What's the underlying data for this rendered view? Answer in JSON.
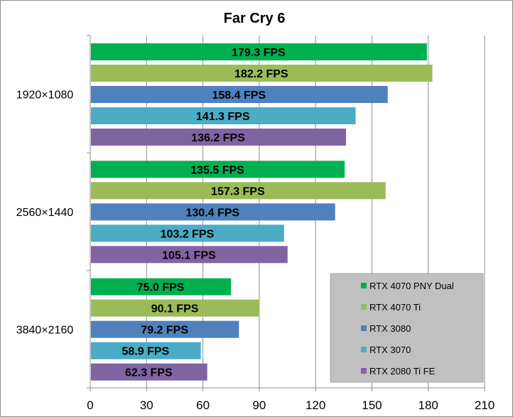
{
  "chart_data": {
    "type": "bar",
    "orientation": "horizontal",
    "title": "Far Cry 6",
    "categories": [
      "1920×1080",
      "2560×1440",
      "3840×2160"
    ],
    "series": [
      {
        "name": "RTX 4070 PNY Dual",
        "color": "#00b050",
        "values": [
          179.3,
          135.5,
          75.0
        ],
        "labels": [
          "179.3 FPS",
          "135.5 FPS",
          "75.0 FPS"
        ]
      },
      {
        "name": "RTX 4070 Ti",
        "color": "#9bbb59",
        "values": [
          182.2,
          157.3,
          90.1
        ],
        "labels": [
          "182.2 FPS",
          "157.3 FPS",
          "90.1 FPS"
        ]
      },
      {
        "name": "RTX 3080",
        "color": "#4f81bd",
        "values": [
          158.4,
          130.4,
          79.2
        ],
        "labels": [
          "158.4 FPS",
          "130.4 FPS",
          "79.2 FPS"
        ]
      },
      {
        "name": "RTX 3070",
        "color": "#4bacc6",
        "values": [
          141.3,
          103.2,
          58.9
        ],
        "labels": [
          "141.3 FPS",
          "103.2 FPS",
          "58.9 FPS"
        ]
      },
      {
        "name": "RTX 2080 Ti FE",
        "color": "#8064a2",
        "values": [
          136.2,
          105.1,
          62.3
        ],
        "labels": [
          "136.2 FPS",
          "105.1 FPS",
          "62.3 FPS"
        ]
      }
    ],
    "xlim": [
      0,
      210
    ],
    "xticks": [
      0,
      30,
      60,
      90,
      120,
      150,
      180,
      210
    ],
    "xtick_labels": [
      "0",
      "30",
      "60",
      "90",
      "120",
      "150",
      "180",
      "210"
    ],
    "grid": "vertical",
    "legend_position": "bottom-right",
    "plot_background": "#ffffff",
    "legend_background": "#c0c0c0"
  }
}
